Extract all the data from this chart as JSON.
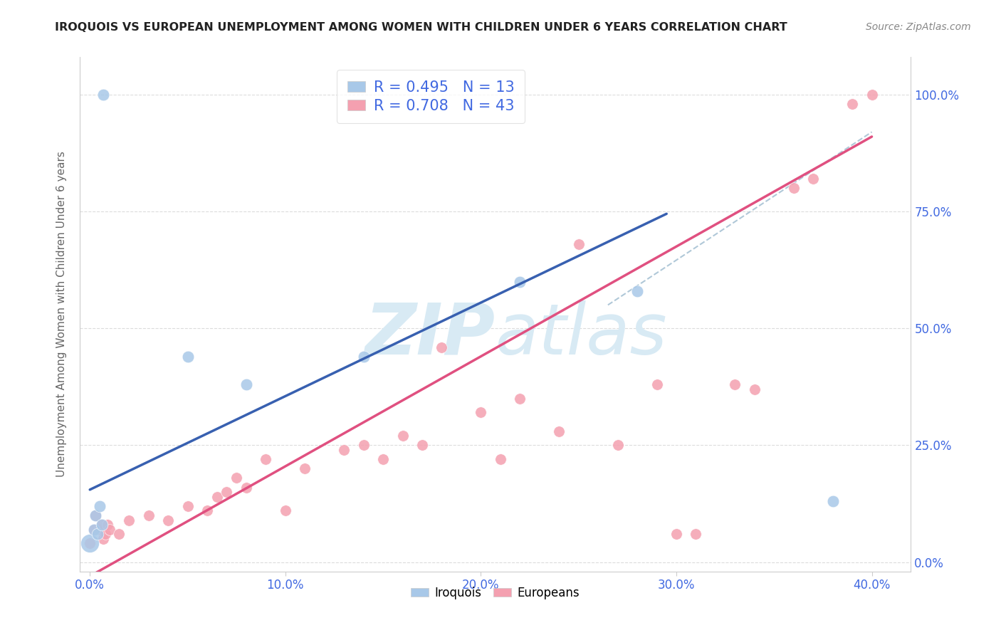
{
  "title": "IROQUOIS VS EUROPEAN UNEMPLOYMENT AMONG WOMEN WITH CHILDREN UNDER 6 YEARS CORRELATION CHART",
  "source": "Source: ZipAtlas.com",
  "xlabel_ticks": [
    "0.0%",
    "10.0%",
    "20.0%",
    "30.0%",
    "40.0%"
  ],
  "xlabel_tick_vals": [
    0.0,
    0.1,
    0.2,
    0.3,
    0.4
  ],
  "ylabel_ticks": [
    "0.0%",
    "25.0%",
    "50.0%",
    "75.0%",
    "100.0%"
  ],
  "ylabel_tick_vals": [
    0.0,
    0.25,
    0.5,
    0.75,
    1.0
  ],
  "xlim": [
    -0.005,
    0.42
  ],
  "ylim": [
    -0.02,
    1.08
  ],
  "iroquois_R": 0.495,
  "iroquois_N": 13,
  "europeans_R": 0.708,
  "europeans_N": 43,
  "iroquois_color": "#A8C8E8",
  "europeans_color": "#F4A0B0",
  "iroquois_line_color": "#3860B0",
  "europeans_line_color": "#E05080",
  "dashed_line_color": "#B0C8D8",
  "watermark_color": "#D8EAF4",
  "iroquois_x": [
    0.0,
    0.002,
    0.003,
    0.004,
    0.005,
    0.006,
    0.007,
    0.05,
    0.08,
    0.14,
    0.22,
    0.28,
    0.38
  ],
  "iroquois_y": [
    0.04,
    0.07,
    0.1,
    0.06,
    0.12,
    0.08,
    1.0,
    0.44,
    0.38,
    0.44,
    0.6,
    0.58,
    0.13
  ],
  "iroquois_sizes": [
    350,
    80,
    70,
    70,
    70,
    70,
    70,
    70,
    70,
    70,
    70,
    70,
    70
  ],
  "europeans_x": [
    0.0,
    0.002,
    0.003,
    0.005,
    0.006,
    0.007,
    0.008,
    0.009,
    0.01,
    0.015,
    0.02,
    0.03,
    0.04,
    0.05,
    0.06,
    0.065,
    0.07,
    0.075,
    0.08,
    0.09,
    0.1,
    0.11,
    0.13,
    0.14,
    0.15,
    0.16,
    0.17,
    0.18,
    0.2,
    0.21,
    0.22,
    0.24,
    0.25,
    0.27,
    0.29,
    0.3,
    0.31,
    0.33,
    0.34,
    0.36,
    0.37,
    0.39,
    0.4
  ],
  "europeans_y": [
    0.04,
    0.07,
    0.1,
    0.07,
    0.08,
    0.05,
    0.06,
    0.08,
    0.07,
    0.06,
    0.09,
    0.1,
    0.09,
    0.12,
    0.11,
    0.14,
    0.15,
    0.18,
    0.16,
    0.22,
    0.11,
    0.2,
    0.24,
    0.25,
    0.22,
    0.27,
    0.25,
    0.46,
    0.32,
    0.22,
    0.35,
    0.28,
    0.68,
    0.25,
    0.38,
    0.06,
    0.06,
    0.38,
    0.37,
    0.8,
    0.82,
    0.98,
    1.0
  ],
  "europeans_sizes": [
    70,
    60,
    60,
    60,
    60,
    60,
    60,
    60,
    60,
    60,
    60,
    60,
    60,
    60,
    60,
    60,
    60,
    60,
    60,
    60,
    60,
    60,
    60,
    60,
    60,
    60,
    60,
    60,
    60,
    60,
    60,
    60,
    60,
    60,
    60,
    60,
    60,
    60,
    60,
    60,
    60,
    60,
    60
  ],
  "blue_line_x0": 0.0,
  "blue_line_y0": 0.155,
  "blue_line_x1": 0.295,
  "blue_line_y1": 0.745,
  "pink_line_x0": 0.0,
  "pink_line_y0": -0.03,
  "pink_line_x1": 0.4,
  "pink_line_y1": 0.91,
  "dash_line_x0": 0.265,
  "dash_line_y0": 0.55,
  "dash_line_x1": 0.4,
  "dash_line_y1": 0.92,
  "grid_color": "#DCDCDC",
  "background_color": "#FFFFFF"
}
